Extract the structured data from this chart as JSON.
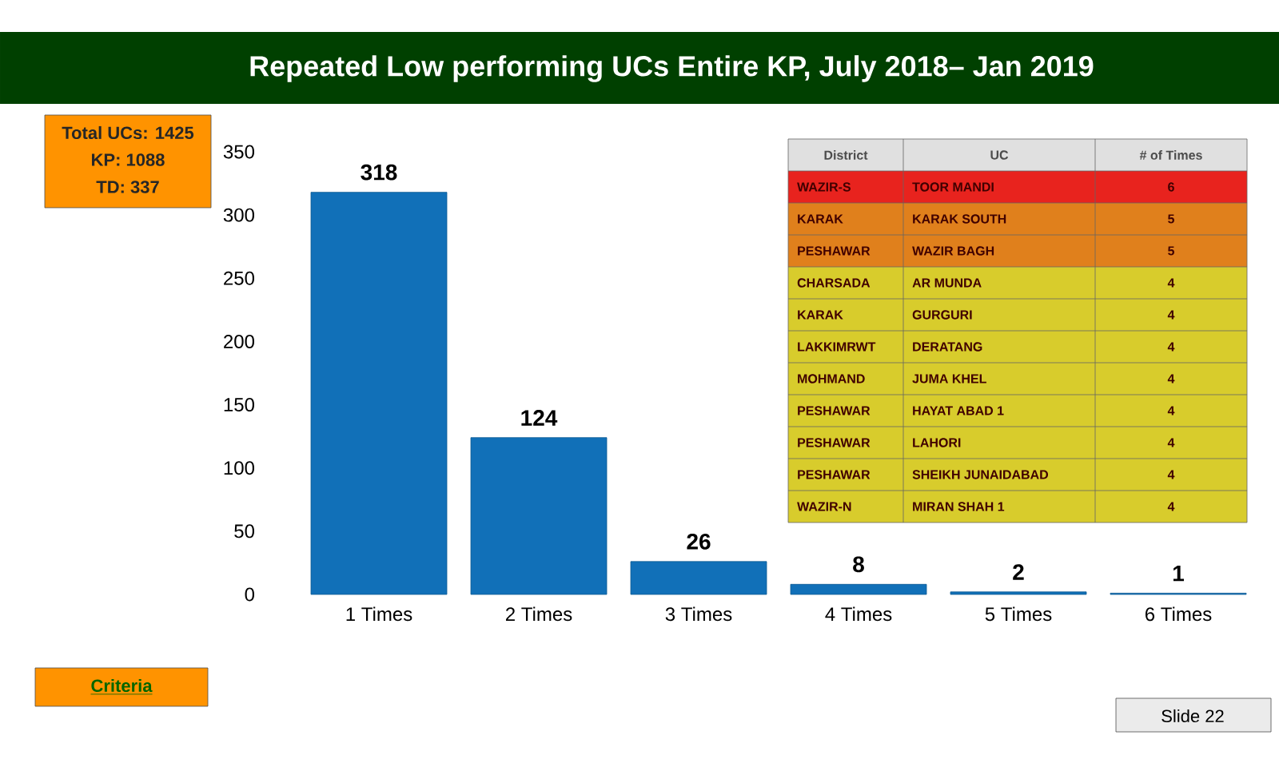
{
  "chart_data": [
    {
      "type": "bar",
      "title": "Repeated Low performing UCs Entire KP, July 2018– Jan 2019",
      "categories": [
        "1 Times",
        "2 Times",
        "3 Times",
        "4 Times",
        "5 Times",
        "6 Times"
      ],
      "values": [
        318,
        124,
        26,
        8,
        2,
        1
      ],
      "color": "#1170b8",
      "ylim": [
        0,
        350
      ],
      "yticks": [
        0,
        50,
        100,
        150,
        200,
        250,
        300,
        350
      ],
      "data_labels": true,
      "annotations": [
        "Total UCs: 1425",
        "KP: 1088",
        "TD: 337",
        "Criteria",
        "Slide 22"
      ]
    },
    {
      "type": "other",
      "categories": [
        "District",
        "UC",
        "# of Times"
      ],
      "colors": [
        "#e8231e",
        "#e0801c",
        "#e0801c",
        "#d8cc2c",
        "#d8cc2c",
        "#d8cc2c",
        "#d8cc2c",
        "#d8cc2c",
        "#d8cc2c",
        "#d8cc2c",
        "#d8cc2c"
      ],
      "annotations": [
        "WAZIR-S",
        "TOOR MANDI",
        "6",
        "KARAK",
        "KARAK SOUTH",
        "5",
        "PESHAWAR",
        "WAZIR BAGH",
        "5",
        "CHARSADA",
        "AR MUNDA",
        "4",
        "KARAK",
        "GURGURI",
        "4",
        "LAKKIMRWT",
        "DERATANG",
        "4",
        "MOHMAND",
        "JUMA KHEL",
        "4",
        "PESHAWAR",
        "HAYAT ABAD 1",
        "4",
        "PESHAWAR",
        "LAHORI",
        "4",
        "PESHAWAR",
        "SHEIKH JUNAIDABAD",
        "4",
        "WAZIR-N",
        "MIRAN SHAH 1",
        "4"
      ]
    }
  ]
}
